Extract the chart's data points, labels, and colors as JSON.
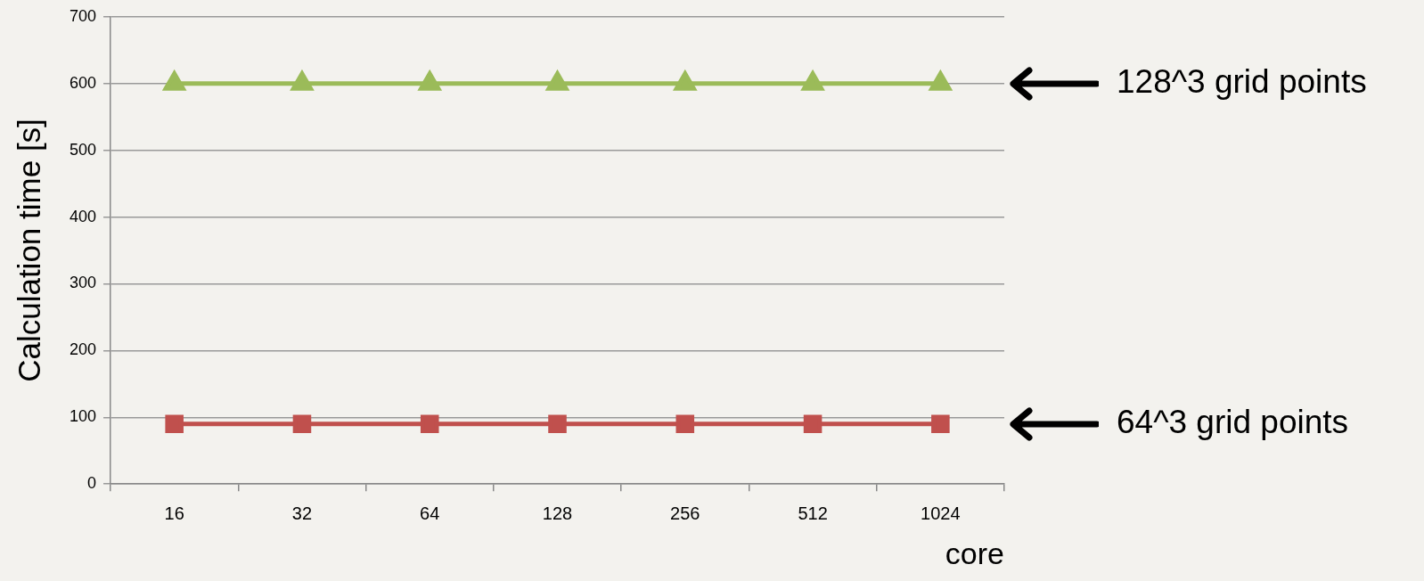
{
  "chart_data": {
    "type": "line",
    "xlabel": "core",
    "ylabel": "Calculation time [s]",
    "categories": [
      "16",
      "32",
      "64",
      "128",
      "256",
      "512",
      "1024"
    ],
    "series": [
      {
        "name": "128^3 grid points",
        "color": "#9bbb59",
        "marker": "triangle",
        "values": [
          600,
          600,
          600,
          600,
          600,
          600,
          600
        ]
      },
      {
        "name": "64^3 grid points",
        "color": "#c0504d",
        "marker": "square",
        "values": [
          90,
          90,
          90,
          90,
          90,
          90,
          90
        ]
      }
    ],
    "ylim": [
      0,
      700
    ],
    "yticks": [
      0,
      100,
      200,
      300,
      400,
      500,
      600,
      700
    ],
    "grid": "y",
    "legend": false,
    "line_style": "solid"
  }
}
